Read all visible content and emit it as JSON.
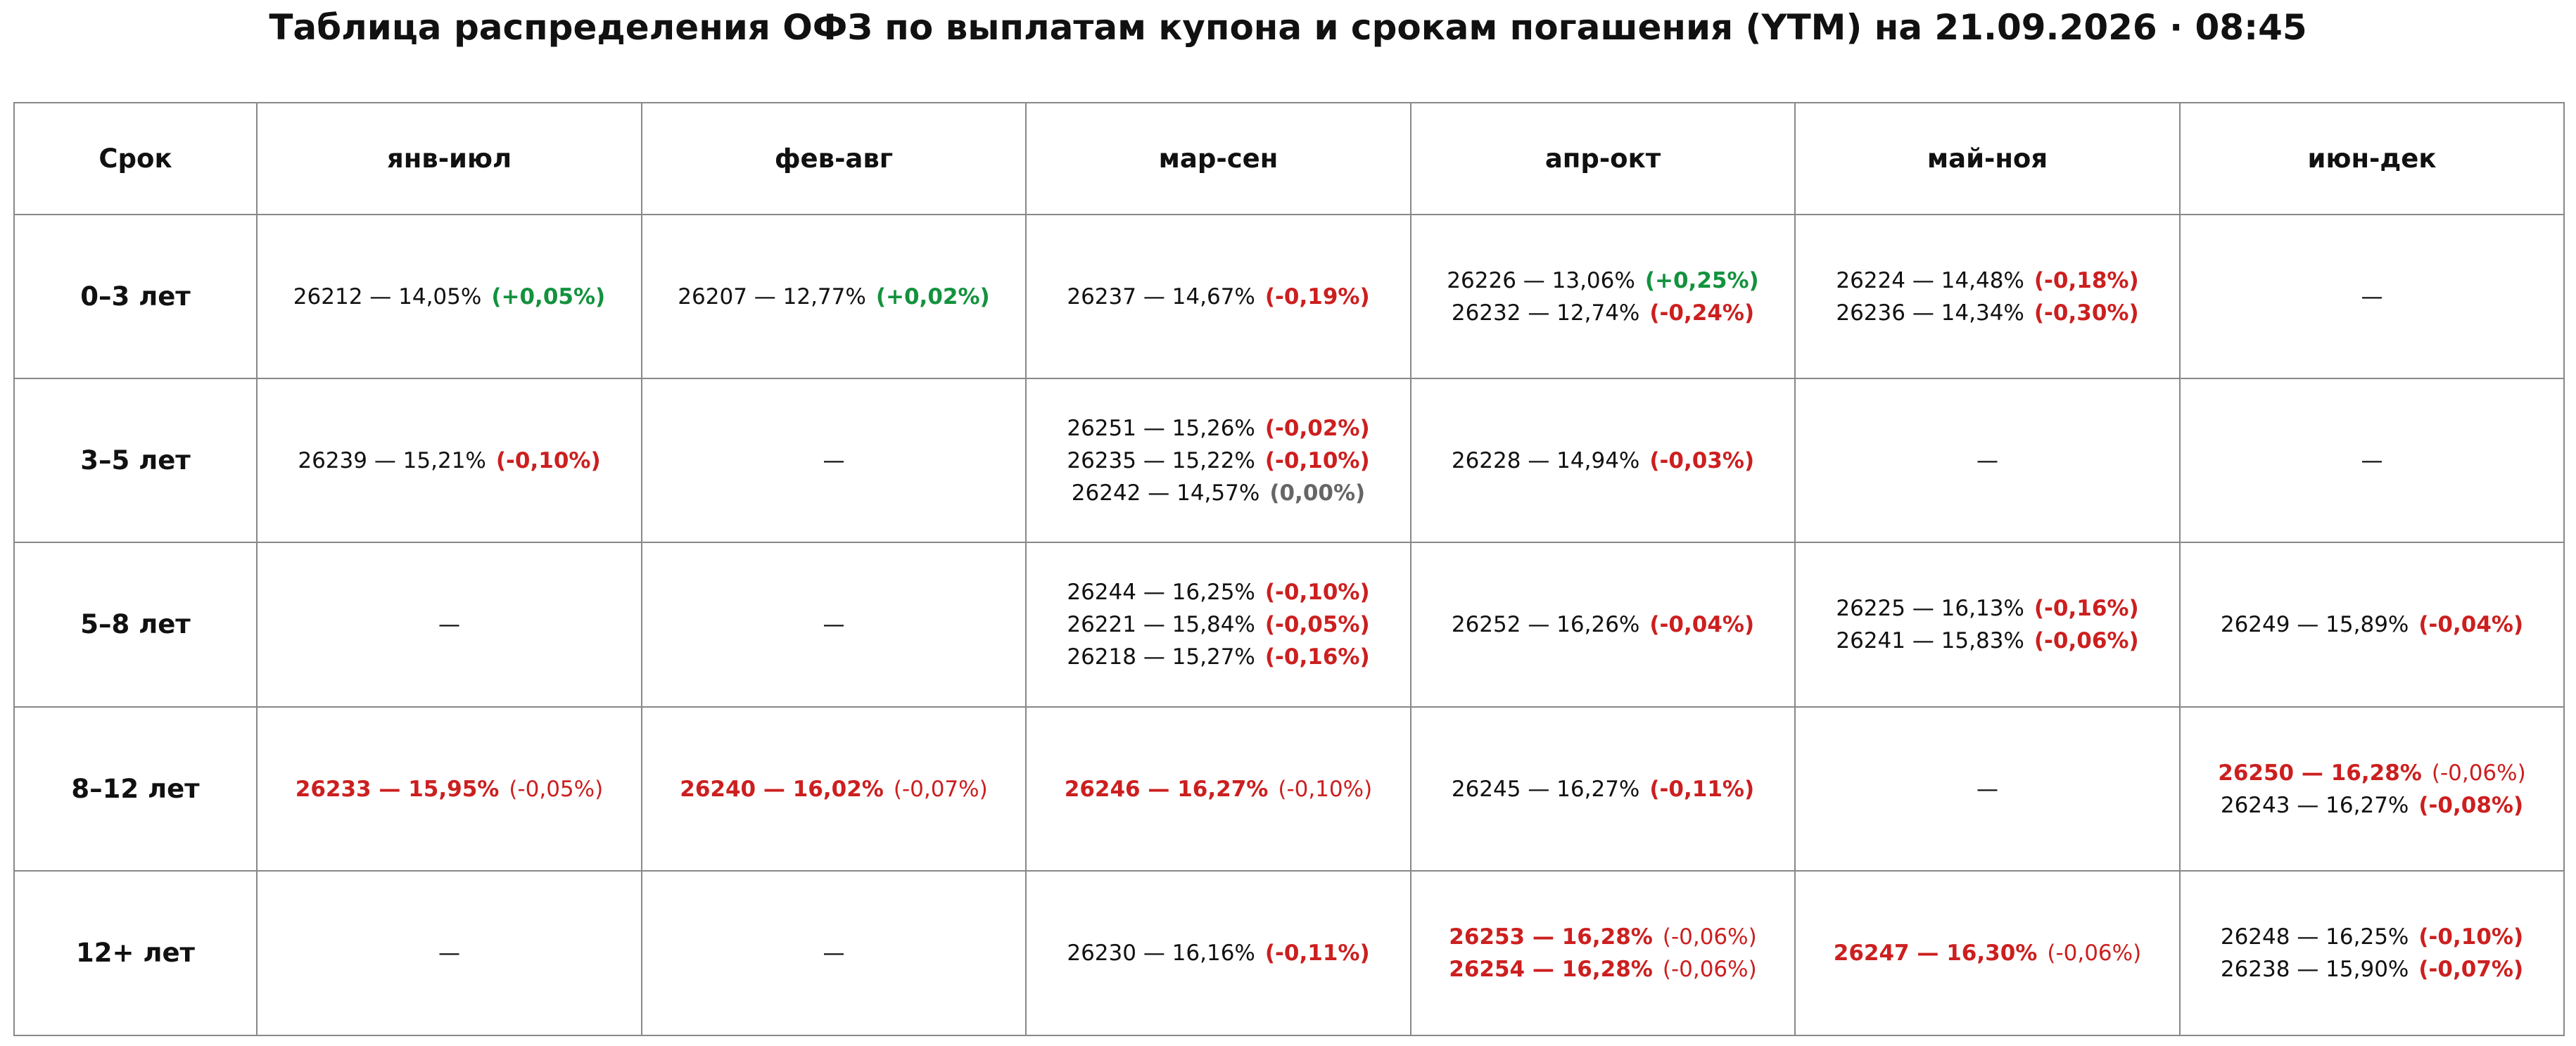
{
  "title": "Таблица распределения ОФЗ по выплатам купона и срокам погашения (YTM) на 21.09.2026 · 08:45",
  "table": {
    "headers": [
      "Срок",
      "янв-июл",
      "фев-авг",
      "мар-сен",
      "апр-окт",
      "май-ноя",
      "июн-дек"
    ],
    "rows": [
      {
        "label": "0–3 лет",
        "cells": [
          [
            {
              "text": "26212 — 14,05%",
              "change": "(+0,05%)",
              "color": "#13923e"
            }
          ],
          [
            {
              "text": "26207 — 12,77%",
              "change": "(+0,02%)",
              "color": "#13923e"
            }
          ],
          [
            {
              "text": "26237 — 14,67%",
              "change": "(-0,19%)",
              "color": "#cc1f1f"
            }
          ],
          [
            {
              "text": "26226 — 13,06%",
              "change": "(+0,25%)",
              "color": "#13923e"
            },
            {
              "text": "26232 — 12,74%",
              "change": "(-0,24%)",
              "color": "#cc1f1f"
            }
          ],
          [
            {
              "text": "26224 — 14,48%",
              "change": "(-0,18%)",
              "color": "#cc1f1f"
            },
            {
              "text": "26236 — 14,34%",
              "change": "(-0,30%)",
              "color": "#cc1f1f"
            }
          ],
          "—"
        ]
      },
      {
        "label": "3–5 лет",
        "cells": [
          [
            {
              "text": "26239 — 15,21%",
              "change": "(-0,10%)",
              "color": "#cc1f1f"
            }
          ],
          "—",
          [
            {
              "text": "26251 — 15,26%",
              "change": "(-0,02%)",
              "color": "#cc1f1f"
            },
            {
              "text": "26235 — 15,22%",
              "change": "(-0,10%)",
              "color": "#cc1f1f"
            },
            {
              "text": "26242 — 14,57%",
              "change": "(0,00%)",
              "color": "#666666"
            }
          ],
          [
            {
              "text": "26228 — 14,94%",
              "change": "(-0,03%)",
              "color": "#cc1f1f"
            }
          ],
          "—",
          "—"
        ]
      },
      {
        "label": "5–8 лет",
        "cells": [
          "—",
          "—",
          [
            {
              "text": "26244 — 16,25%",
              "change": "(-0,10%)",
              "color": "#cc1f1f"
            },
            {
              "text": "26221 — 15,84%",
              "change": "(-0,05%)",
              "color": "#cc1f1f"
            },
            {
              "text": "26218 — 15,27%",
              "change": "(-0,16%)",
              "color": "#cc1f1f"
            }
          ],
          [
            {
              "text": "26252 — 16,26%",
              "change": "(-0,04%)",
              "color": "#cc1f1f"
            }
          ],
          [
            {
              "text": "26225 — 16,13%",
              "change": "(-0,16%)",
              "color": "#cc1f1f"
            },
            {
              "text": "26241 — 15,83%",
              "change": "(-0,06%)",
              "color": "#cc1f1f"
            }
          ],
          [
            {
              "text": "26249 — 15,89%",
              "change": "(-0,04%)",
              "color": "#cc1f1f"
            }
          ]
        ]
      },
      {
        "label": "8–12 лет",
        "cells": [
          [
            {
              "text": "26233 — 15,95%",
              "change": "(-0,05%)",
              "color": "#cc1f1f",
              "highlight": true
            }
          ],
          [
            {
              "text": "26240 — 16,02%",
              "change": "(-0,07%)",
              "color": "#cc1f1f",
              "highlight": true
            }
          ],
          [
            {
              "text": "26246 — 16,27%",
              "change": "(-0,10%)",
              "color": "#cc1f1f",
              "highlight": true
            }
          ],
          [
            {
              "text": "26245 — 16,27%",
              "change": "(-0,11%)",
              "color": "#cc1f1f"
            }
          ],
          "—",
          [
            {
              "text": "26250 — 16,28%",
              "change": "(-0,06%)",
              "color": "#cc1f1f",
              "highlight": true
            },
            {
              "text": "26243 — 16,27%",
              "change": "(-0,08%)",
              "color": "#cc1f1f"
            }
          ]
        ]
      },
      {
        "label": "12+ лет",
        "cells": [
          "—",
          "—",
          [
            {
              "text": "26230 — 16,16%",
              "change": "(-0,11%)",
              "color": "#cc1f1f"
            }
          ],
          [
            {
              "text": "26253 — 16,28%",
              "change": "(-0,06%)",
              "color": "#cc1f1f",
              "highlight": true
            },
            {
              "text": "26254 — 16,28%",
              "change": "(-0,06%)",
              "color": "#cc1f1f",
              "highlight": true
            }
          ],
          [
            {
              "text": "26247 — 16,30%",
              "change": "(-0,06%)",
              "color": "#cc1f1f",
              "highlight": true
            }
          ],
          [
            {
              "text": "26248 — 16,25%",
              "change": "(-0,10%)",
              "color": "#cc1f1f"
            },
            {
              "text": "26238 — 15,90%",
              "change": "(-0,07%)",
              "color": "#cc1f1f"
            }
          ]
        ]
      }
    ]
  }
}
